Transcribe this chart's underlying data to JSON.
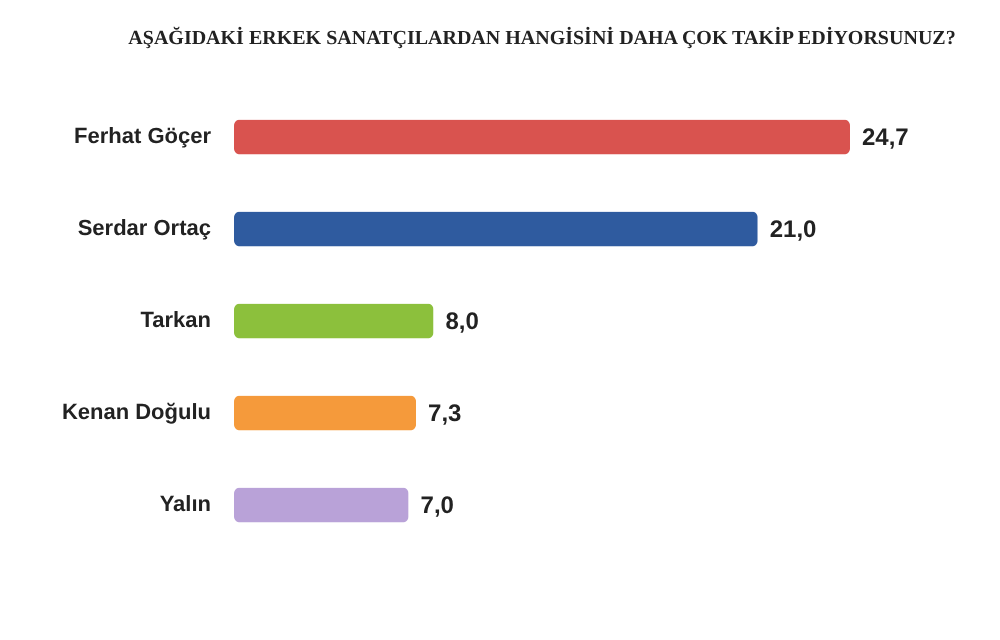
{
  "chart_data": {
    "type": "bar",
    "orientation": "horizontal",
    "title": "AŞAĞIDAKİ ERKEK SANATÇILARDAN HANGİSİNİ DAHA ÇOK TAKİP EDİYORSUNUZ?",
    "categories": [
      "Ferhat Göçer",
      "Serdar Ortaç",
      "Tarkan",
      "Kenan Doğulu",
      "Yalın"
    ],
    "values": [
      24.7,
      21.0,
      8.0,
      7.3,
      7.0
    ],
    "colors": [
      "#d9534f",
      "#2f5b9f",
      "#8cc03c",
      "#f59a3b",
      "#b9a2d8"
    ],
    "value_labels": [
      "24,7",
      "21,0",
      "8,0",
      "7,3",
      "7,0"
    ],
    "grid": false
  }
}
